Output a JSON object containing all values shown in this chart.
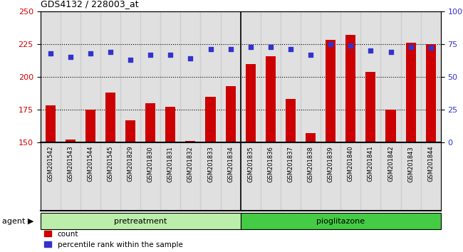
{
  "title": "GDS4132 / 228003_at",
  "samples": [
    "GSM201542",
    "GSM201543",
    "GSM201544",
    "GSM201545",
    "GSM201829",
    "GSM201830",
    "GSM201831",
    "GSM201832",
    "GSM201833",
    "GSM201834",
    "GSM201835",
    "GSM201836",
    "GSM201837",
    "GSM201838",
    "GSM201839",
    "GSM201840",
    "GSM201841",
    "GSM201842",
    "GSM201843",
    "GSM201844"
  ],
  "count_values": [
    178,
    152,
    175,
    188,
    167,
    180,
    177,
    151,
    185,
    193,
    210,
    216,
    183,
    157,
    228,
    232,
    204,
    175,
    226,
    225
  ],
  "percentile_values": [
    68,
    65,
    68,
    69,
    63,
    67,
    67,
    64,
    71,
    71,
    73,
    73,
    71,
    67,
    75,
    74,
    70,
    69,
    73,
    72
  ],
  "pretreatment_count": 10,
  "pioglitazone_count": 10,
  "ylim_left": [
    150,
    250
  ],
  "ylim_right": [
    0,
    100
  ],
  "yticks_left": [
    150,
    175,
    200,
    225,
    250
  ],
  "yticks_right": [
    0,
    25,
    50,
    75,
    100
  ],
  "bar_color": "#cc0000",
  "dot_color": "#3333cc",
  "col_bg_color": "#cccccc",
  "pretreat_color": "#bbeeaa",
  "pioglitazone_color": "#44cc44",
  "tick_label_color_left": "#cc0000",
  "tick_label_color_right": "#3333cc",
  "count_label": "count",
  "percentile_label": "percentile rank within the sample",
  "agent_label": "agent",
  "pretreat_label": "pretreatment",
  "pioglitazone_label": "pioglitazone",
  "bar_bottom": 150
}
